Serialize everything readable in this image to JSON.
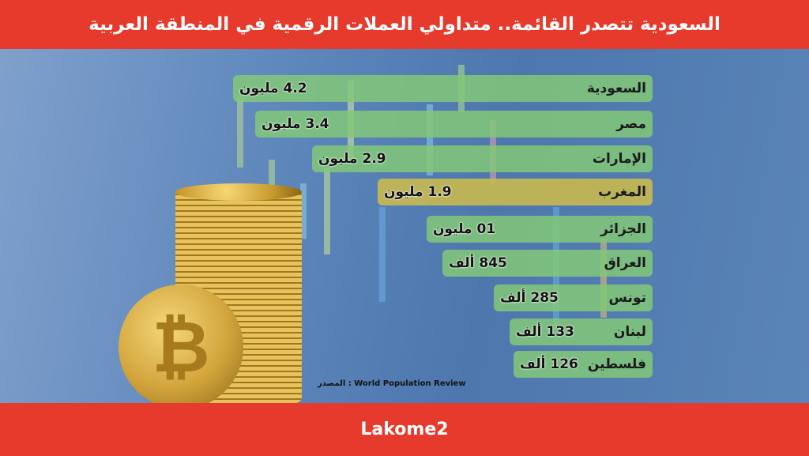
{
  "header": {
    "title": "السعودية تتصدر القائمة.. متداولي العملات الرقمية في المنطقة العربية"
  },
  "footer": {
    "brand": "Lakome2"
  },
  "source": "المصدر : World Population Review",
  "colors": {
    "header": "#e53a2c",
    "bar": "#82c878",
    "highlight_bar": "#c8b950",
    "background": "#5a83b8"
  },
  "chart_data": {
    "type": "bar",
    "orientation": "horizontal",
    "title": "السعودية تتصدر القائمة.. متداولي العملات الرقمية في المنطقة العربية",
    "categories": [
      "السعودية",
      "مصر",
      "الإمارات",
      "المغرب",
      "الجزائر",
      "العراق",
      "تونس",
      "لبنان",
      "فلسطين"
    ],
    "values": [
      4200000,
      3400000,
      2900000,
      1900000,
      1000000,
      845000,
      285000,
      133000,
      126000
    ],
    "labels": [
      "4.2 مليون",
      "3.4 مليون",
      "2.9 مليون",
      "1.9 مليون",
      "01 مليون",
      "845 ألف",
      "285 ألف",
      "133 ألف",
      "126 ألف"
    ],
    "highlight": "المغرب"
  }
}
